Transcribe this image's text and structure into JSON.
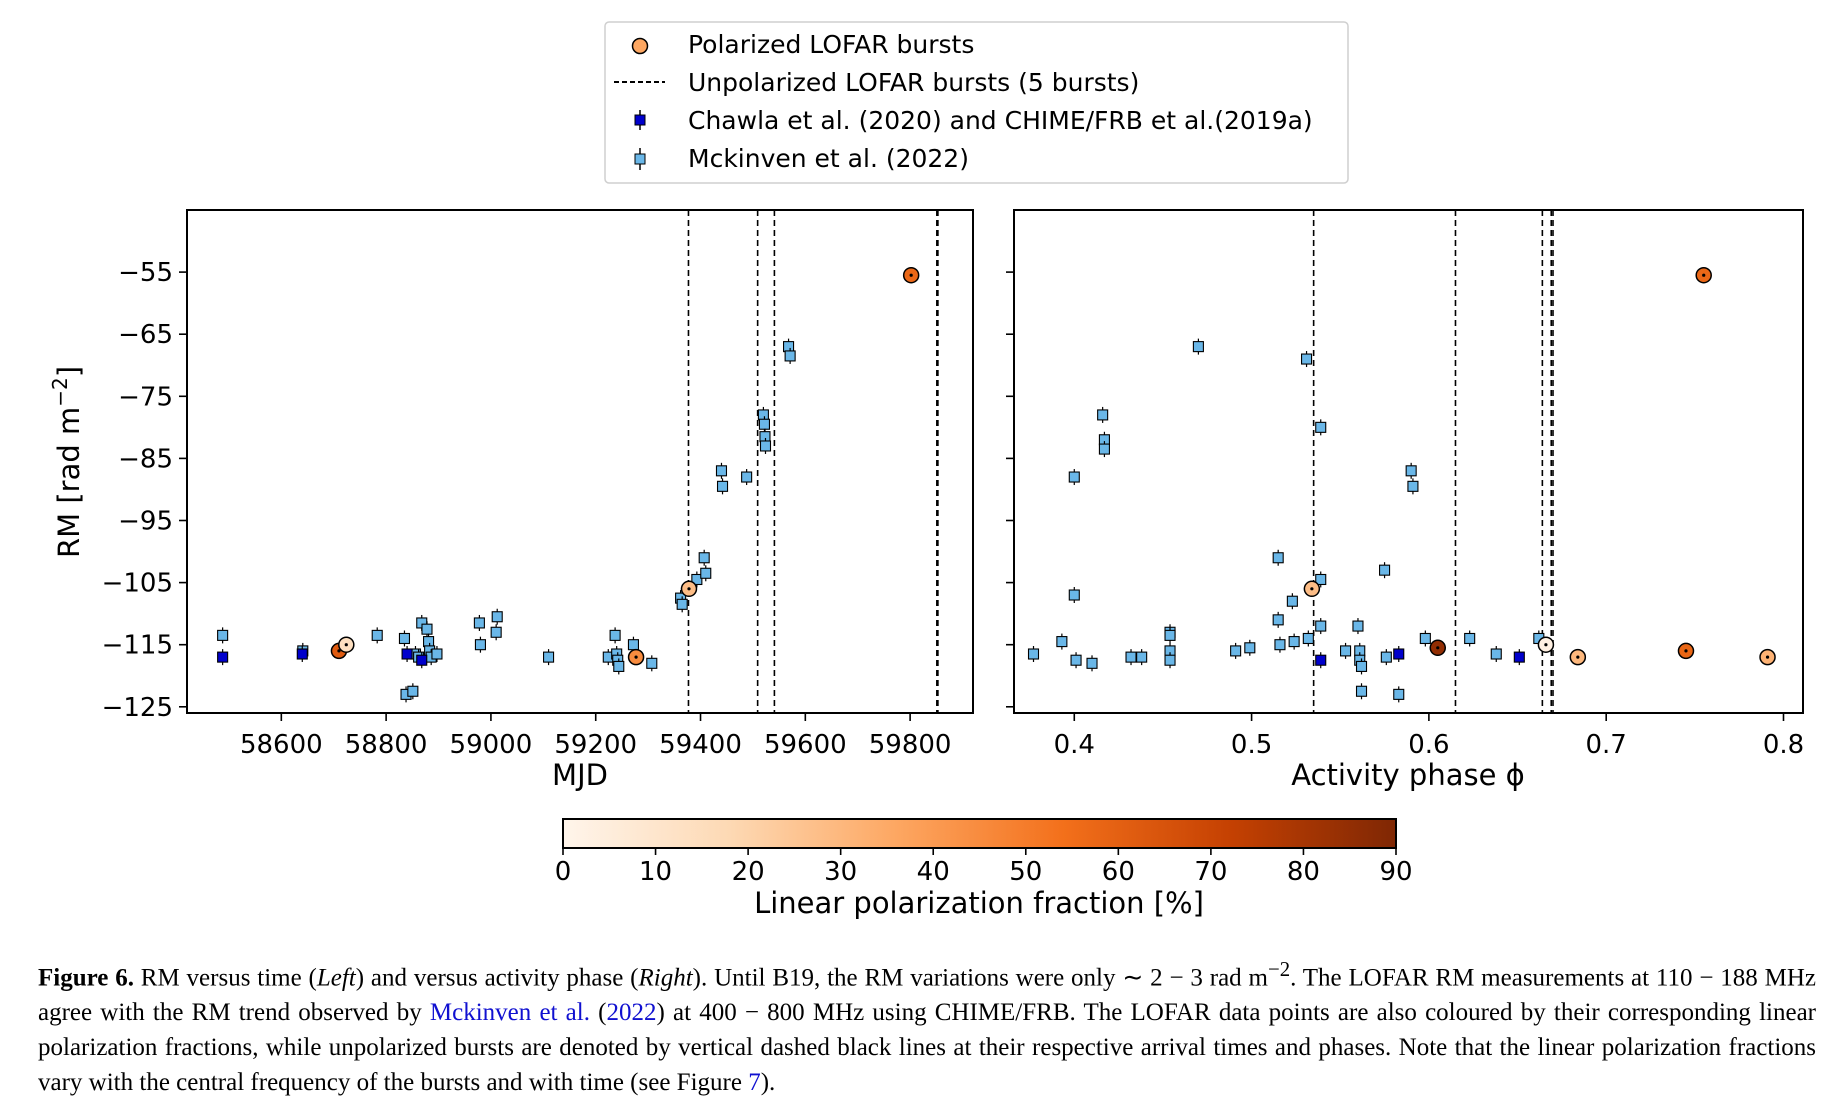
{
  "legend": {
    "polarized": "Polarized LOFAR bursts",
    "unpolarized": "Unpolarized LOFAR bursts (5 bursts)",
    "chawla": "Chawla et al. (2020) and CHIME/FRB et al.(2019a)",
    "mckinven": "Mckinven et al. (2022)"
  },
  "colors": {
    "chawla": "#0000cc",
    "mckinven": "#6ab7e8",
    "cmap": [
      "#fff5eb",
      "#fdd9b4",
      "#fda762",
      "#f3701b",
      "#c54102",
      "#7f2704"
    ]
  },
  "colorbar": {
    "label": "Linear polarization fraction [%]",
    "min": 0,
    "max": 90,
    "ticks": [
      "0",
      "10",
      "20",
      "30",
      "40",
      "50",
      "60",
      "70",
      "80",
      "90"
    ]
  },
  "chart_data": [
    {
      "type": "scatter",
      "xlabel": "MJD",
      "ylabel": "RM [rad m−2]",
      "xlim": [
        58420,
        59920
      ],
      "ylim": [
        -126,
        -45
      ],
      "xticks": [
        58600,
        58800,
        59000,
        59200,
        59400,
        59600,
        59800
      ],
      "yticks": [
        -55,
        -65,
        -75,
        -85,
        -95,
        -105,
        -115,
        -125
      ],
      "unpolarized_x": [
        59377,
        59509,
        59541,
        59851,
        59853
      ],
      "series": [
        {
          "name": "Polarized LOFAR bursts",
          "points": [
            [
              58710,
              -116,
              62
            ],
            [
              58724,
              -115,
              14
            ],
            [
              59277,
              -117,
              45
            ],
            [
              59378,
              -106,
              28
            ],
            [
              59802,
              -55.5,
              57
            ]
          ]
        },
        {
          "name": "Chawla et al. (2020) and CHIME/FRB et al.(2019a)",
          "points": [
            [
              58488,
              -117
            ],
            [
              58640,
              -116.5
            ],
            [
              58840,
              -116.5
            ],
            [
              58868,
              -117.5
            ]
          ]
        },
        {
          "name": "Mckinven et al. (2022)",
          "points": [
            [
              58488,
              -113.5
            ],
            [
              58641,
              -116
            ],
            [
              58783,
              -113.5
            ],
            [
              58835,
              -114
            ],
            [
              58838,
              -123
            ],
            [
              58851,
              -122.5
            ],
            [
              58856,
              -116.5
            ],
            [
              58862,
              -117
            ],
            [
              58868,
              -111.5
            ],
            [
              58878,
              -112.5
            ],
            [
              58881,
              -114.5
            ],
            [
              58883,
              -116
            ],
            [
              58886,
              -117
            ],
            [
              58897,
              -116.5
            ],
            [
              58978,
              -111.5
            ],
            [
              58980,
              -115
            ],
            [
              59010,
              -113
            ],
            [
              59012,
              -110.5
            ],
            [
              59110,
              -117
            ],
            [
              59224,
              -117
            ],
            [
              59237,
              -113.5
            ],
            [
              59240,
              -116.5
            ],
            [
              59242,
              -117.5
            ],
            [
              59244,
              -118.5
            ],
            [
              59272,
              -115
            ],
            [
              59307,
              -118
            ],
            [
              59362,
              -107.5
            ],
            [
              59365,
              -108.5
            ],
            [
              59393,
              -104.5
            ],
            [
              59407,
              -101
            ],
            [
              59410,
              -103.5
            ],
            [
              59440,
              -87
            ],
            [
              59442,
              -89.5
            ],
            [
              59488,
              -88
            ],
            [
              59520,
              -78
            ],
            [
              59522,
              -79.5
            ],
            [
              59523,
              -81.5
            ],
            [
              59524,
              -83
            ],
            [
              59568,
              -67
            ],
            [
              59571,
              -68.5
            ]
          ]
        }
      ]
    },
    {
      "type": "scatter",
      "xlabel": "Activity phase ϕ",
      "ylabel": "",
      "xlim": [
        0.366,
        0.811
      ],
      "ylim": [
        -126,
        -45
      ],
      "xticks": [
        "0.4",
        "0.5",
        "0.6",
        "0.7",
        "0.8"
      ],
      "yticks": [
        -55,
        -65,
        -75,
        -85,
        -95,
        -105,
        -115,
        -125
      ],
      "unpolarized_x": [
        0.535,
        0.615,
        0.664,
        0.669,
        0.67
      ],
      "series": [
        {
          "name": "Polarized LOFAR bursts",
          "points": [
            [
              0.534,
              -106,
              28
            ],
            [
              0.605,
              -115.5,
              85
            ],
            [
              0.666,
              -115,
              3
            ],
            [
              0.684,
              -117,
              30
            ],
            [
              0.745,
              -116,
              58
            ],
            [
              0.755,
              -55.5,
              57
            ],
            [
              0.791,
              -117,
              32
            ]
          ]
        },
        {
          "name": "Chawla et al. (2020) and CHIME/FRB et al.(2019a)",
          "points": [
            [
              0.539,
              -117.5
            ],
            [
              0.583,
              -116.5
            ],
            [
              0.651,
              -117
            ]
          ]
        },
        {
          "name": "Mckinven et al. (2022)",
          "points": [
            [
              0.377,
              -116.5
            ],
            [
              0.393,
              -114.5
            ],
            [
              0.4,
              -88
            ],
            [
              0.4,
              -107
            ],
            [
              0.401,
              -117.5
            ],
            [
              0.41,
              -118
            ],
            [
              0.416,
              -78
            ],
            [
              0.417,
              -82
            ],
            [
              0.417,
              -83.5
            ],
            [
              0.432,
              -117
            ],
            [
              0.438,
              -117
            ],
            [
              0.454,
              -113
            ],
            [
              0.454,
              -113.5
            ],
            [
              0.454,
              -116
            ],
            [
              0.454,
              -117.5
            ],
            [
              0.47,
              -67
            ],
            [
              0.491,
              -116
            ],
            [
              0.499,
              -115.5
            ],
            [
              0.515,
              -111
            ],
            [
              0.515,
              -101
            ],
            [
              0.516,
              -115
            ],
            [
              0.523,
              -108
            ],
            [
              0.524,
              -114.5
            ],
            [
              0.531,
              -69
            ],
            [
              0.532,
              -114
            ],
            [
              0.539,
              -80
            ],
            [
              0.539,
              -104.5
            ],
            [
              0.539,
              -112
            ],
            [
              0.553,
              -116
            ],
            [
              0.56,
              -112
            ],
            [
              0.561,
              -116
            ],
            [
              0.561,
              -117.5
            ],
            [
              0.562,
              -118.5
            ],
            [
              0.562,
              -122.5
            ],
            [
              0.575,
              -103
            ],
            [
              0.576,
              -117
            ],
            [
              0.583,
              -123
            ],
            [
              0.59,
              -87
            ],
            [
              0.591,
              -89.5
            ],
            [
              0.598,
              -114
            ],
            [
              0.623,
              -114
            ],
            [
              0.638,
              -116.5
            ],
            [
              0.662,
              -114
            ]
          ]
        }
      ]
    }
  ],
  "caption": {
    "label": "Figure 6.",
    "t1": " RM versus time (",
    "left": "Left",
    "t2": ") and versus activity phase (",
    "right": "Right",
    "t3": "). Until B19, the RM variations were only ∼ 2 − 3 rad m",
    "sup": "−2",
    "t4": ". The LOFAR RM measurements at 110 − 188 MHz agree with the RM trend observed by ",
    "ref_author": "Mckinven et al.",
    "t5": " (",
    "ref_year": "2022",
    "t6": ") at 400 − 800 MHz using CHIME/FRB. The LOFAR data points are also coloured by their corresponding linear polarization fractions, while unpolarized bursts are denoted by vertical dashed black lines at their respective arrival times and phases. Note that the linear polarization fractions vary with the central frequency of the bursts and with time (see Figure ",
    "fig_ref": "7",
    "t7": ")."
  }
}
